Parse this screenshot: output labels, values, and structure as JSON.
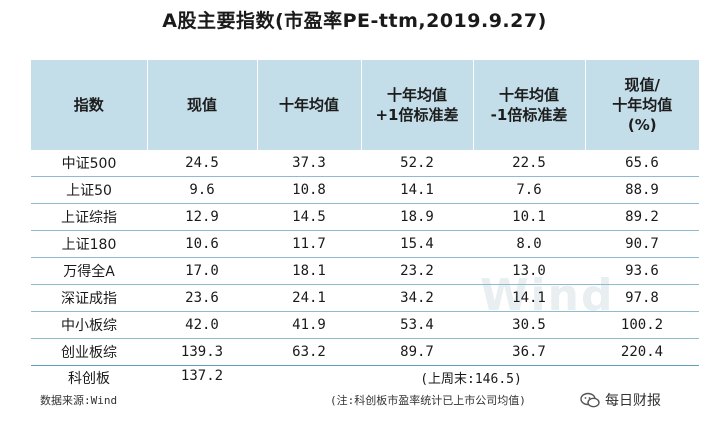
{
  "title": "A股主要指数(市盈率PE-ttm,2019.9.27)",
  "columns": [
    [
      "指数"
    ],
    [
      "现值"
    ],
    [
      "十年均值"
    ],
    [
      "十年均值",
      "+1倍标准差"
    ],
    [
      "十年均值",
      "-1倍标准差"
    ],
    [
      "现值/",
      "十年均值",
      "(%)"
    ]
  ],
  "rows": [
    [
      "中证500",
      "24.5",
      "37.3",
      "52.2",
      "22.5",
      "65.6"
    ],
    [
      "上证50",
      "9.6",
      "10.8",
      "14.1",
      "7.6",
      "88.9"
    ],
    [
      "上证综指",
      "12.9",
      "14.5",
      "18.9",
      "10.1",
      "89.2"
    ],
    [
      "上证180",
      "10.6",
      "11.7",
      "15.4",
      "8.0",
      "90.7"
    ],
    [
      "万得全A",
      "17.0",
      "18.1",
      "23.2",
      "13.0",
      "93.6"
    ],
    [
      "深证成指",
      "23.6",
      "24.1",
      "34.2",
      "14.1",
      "97.8"
    ],
    [
      "中小板综",
      "42.0",
      "41.9",
      "53.4",
      "30.5",
      "100.2"
    ],
    [
      "创业板综",
      "139.3",
      "63.2",
      "89.7",
      "36.7",
      "220.4"
    ]
  ],
  "kcb": {
    "name": "科创板",
    "value": "137.2",
    "week_close": "(上周末:146.5)"
  },
  "source": "数据来源:Wind",
  "note": "(注:科创板市盈率统计已上市公司均值)",
  "watermark": "Wind",
  "brand": {
    "name": "每日财报",
    "icon": "wechat-icon"
  },
  "colors": {
    "header_bg": "#c3dde9",
    "row_rule": "#8fbad0"
  }
}
